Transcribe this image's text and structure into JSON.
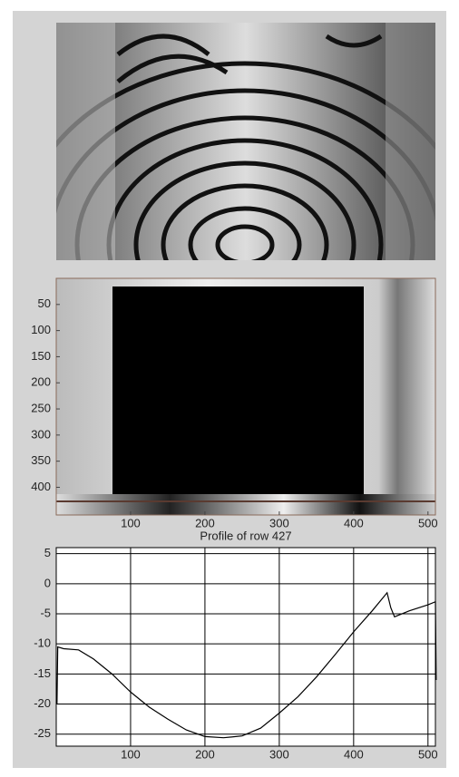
{
  "chart_data": [
    {
      "type": "image",
      "xlim": [
        0,
        510
      ],
      "ylim": [
        0,
        453
      ],
      "y_reversed": true,
      "xticks": [
        100,
        200,
        300,
        400,
        500
      ],
      "yticks": [
        50,
        100,
        150,
        200,
        250,
        300,
        350,
        400
      ]
    },
    {
      "type": "line",
      "title": "Profile of row 427",
      "color": "#000000",
      "grid": true,
      "x": [
        1,
        2,
        10,
        30,
        50,
        75,
        100,
        125,
        150,
        175,
        200,
        225,
        250,
        275,
        300,
        325,
        350,
        375,
        400,
        425,
        445,
        450,
        455,
        475,
        500,
        510,
        511
      ],
      "values": [
        -20,
        -10.5,
        -10.8,
        -11,
        -12.5,
        -15,
        -18,
        -20.5,
        -22.5,
        -24.3,
        -25.4,
        -25.6,
        -25.3,
        -24,
        -21.5,
        -18.8,
        -15.5,
        -11.8,
        -8,
        -4.5,
        -1.5,
        -4,
        -5.5,
        -4.5,
        -3.5,
        -3,
        -16
      ],
      "xlim": [
        0,
        510
      ],
      "ylim": [
        -27,
        6
      ],
      "xticks": [
        100,
        200,
        300,
        400,
        500
      ],
      "yticks": [
        5,
        0,
        -5,
        -10,
        -15,
        -20,
        -25
      ]
    }
  ]
}
